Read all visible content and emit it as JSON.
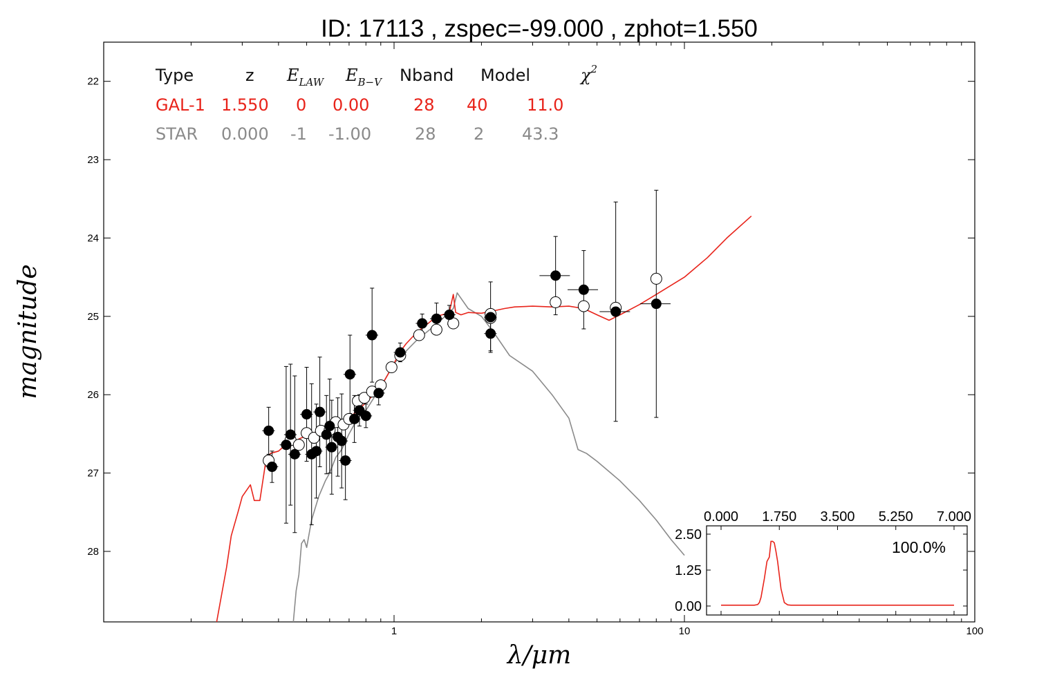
{
  "title": "ID:  17113 , zspec=-99.000 , zphot=1.550",
  "colors": {
    "gal": "#e8231a",
    "star": "#8a8a8a",
    "axis": "#000000"
  },
  "table": {
    "headers": {
      "type": "Type",
      "z": "z",
      "elaw": "E",
      "elaw_sub": "LAW",
      "ebv": "E",
      "ebv_sub": "B−V",
      "nband": "Nband",
      "model": "Model",
      "chi": "χ",
      "chi_sup": "2"
    },
    "rows": [
      {
        "name": "GAL-1",
        "z": "1.550",
        "elaw": "0",
        "ebv": "0.00",
        "nband": "28",
        "model": "40",
        "chi2": "11.0",
        "color": "#e8231a"
      },
      {
        "name": "STAR",
        "z": "0.000",
        "elaw": "-1",
        "ebv": "-1.00",
        "nband": "28",
        "model": "2",
        "chi2": "43.3",
        "color": "#8a8a8a"
      }
    ]
  },
  "chart_data": {
    "type": "scatter",
    "title": "ID:  17113 , zspec=-99.000 , zphot=1.550",
    "xlabel": "λ/μm",
    "ylabel": "magnitude",
    "xscale": "log",
    "xlim": [
      0.1,
      100
    ],
    "ylim": [
      28.9,
      21.5
    ],
    "xticks": [
      1,
      10,
      100
    ],
    "xtick_labels": [
      "1",
      "10",
      "100"
    ],
    "yticks": [
      22,
      23,
      24,
      25,
      26,
      27,
      28
    ],
    "ytick_labels": [
      "22",
      "23",
      "24",
      "25",
      "26",
      "27",
      "28"
    ],
    "observed": [
      {
        "x": 0.37,
        "y": 26.46,
        "err": 0.3
      },
      {
        "x": 0.38,
        "y": 26.92,
        "err": 0.2
      },
      {
        "x": 0.425,
        "y": 26.64,
        "err": 1.0
      },
      {
        "x": 0.44,
        "y": 26.51,
        "err": 0.9
      },
      {
        "x": 0.455,
        "y": 26.76,
        "err": 1.0
      },
      {
        "x": 0.5,
        "y": 26.25,
        "err": 0.6
      },
      {
        "x": 0.52,
        "y": 26.76,
        "err": 0.9
      },
      {
        "x": 0.54,
        "y": 26.72,
        "err": 0.6
      },
      {
        "x": 0.555,
        "y": 26.22,
        "err": 0.7
      },
      {
        "x": 0.585,
        "y": 26.51,
        "err": 0.5
      },
      {
        "x": 0.6,
        "y": 26.4,
        "err": 0.6
      },
      {
        "x": 0.61,
        "y": 26.67,
        "err": 0.6
      },
      {
        "x": 0.64,
        "y": 26.54,
        "err": 0.5
      },
      {
        "x": 0.66,
        "y": 26.59,
        "err": 0.6
      },
      {
        "x": 0.68,
        "y": 26.84,
        "err": 0.5
      },
      {
        "x": 0.705,
        "y": 25.74,
        "err": 0.5
      },
      {
        "x": 0.73,
        "y": 26.31,
        "err": 0.3
      },
      {
        "x": 0.76,
        "y": 26.2,
        "err": 0.2
      },
      {
        "x": 0.8,
        "y": 26.27,
        "err": 0.15
      },
      {
        "x": 0.84,
        "y": 25.24,
        "err": 0.6
      },
      {
        "x": 0.885,
        "y": 25.98,
        "err": 0.15
      },
      {
        "x": 1.05,
        "y": 25.46,
        "err": 0.12
      },
      {
        "x": 1.25,
        "y": 25.09,
        "err": 0.12
      },
      {
        "x": 1.4,
        "y": 25.03,
        "err": 0.2
      },
      {
        "x": 1.55,
        "y": 24.98,
        "err": 0.12
      },
      {
        "x": 2.15,
        "y": 25.01,
        "err": 0.45
      },
      {
        "x": 2.15,
        "y": 25.22,
        "err": 0.22
      },
      {
        "x": 3.6,
        "y": 24.48,
        "err": 0.5
      },
      {
        "x": 4.5,
        "y": 24.66,
        "err": 0.5
      },
      {
        "x": 5.8,
        "y": 24.94,
        "err": 1.4
      },
      {
        "x": 8.0,
        "y": 24.84,
        "err": 1.45
      }
    ],
    "model_points": [
      {
        "x": 0.37,
        "y": 26.84
      },
      {
        "x": 0.44,
        "y": 26.58
      },
      {
        "x": 0.47,
        "y": 26.64
      },
      {
        "x": 0.5,
        "y": 26.49
      },
      {
        "x": 0.53,
        "y": 26.55
      },
      {
        "x": 0.56,
        "y": 26.46
      },
      {
        "x": 0.6,
        "y": 26.45
      },
      {
        "x": 0.63,
        "y": 26.35
      },
      {
        "x": 0.67,
        "y": 26.38
      },
      {
        "x": 0.7,
        "y": 26.31
      },
      {
        "x": 0.75,
        "y": 26.08
      },
      {
        "x": 0.79,
        "y": 26.04
      },
      {
        "x": 0.84,
        "y": 25.96
      },
      {
        "x": 0.9,
        "y": 25.88
      },
      {
        "x": 0.98,
        "y": 25.65
      },
      {
        "x": 1.05,
        "y": 25.5
      },
      {
        "x": 1.22,
        "y": 25.24
      },
      {
        "x": 1.4,
        "y": 25.17
      },
      {
        "x": 1.6,
        "y": 25.09
      },
      {
        "x": 2.15,
        "y": 25.02
      },
      {
        "x": 2.15,
        "y": 24.97
      },
      {
        "x": 3.6,
        "y": 24.82
      },
      {
        "x": 4.5,
        "y": 24.87
      },
      {
        "x": 5.8,
        "y": 24.89
      },
      {
        "x": 8.0,
        "y": 24.52
      }
    ],
    "series": [
      {
        "name": "GAL-1",
        "color": "#e8231a",
        "x": [
          0.245,
          0.265,
          0.275,
          0.29,
          0.3,
          0.32,
          0.33,
          0.345,
          0.36,
          0.375,
          0.4,
          0.42,
          0.45,
          0.48,
          0.52,
          0.56,
          0.6,
          0.65,
          0.7,
          0.75,
          0.8,
          0.85,
          0.9,
          0.95,
          1.0,
          1.05,
          1.1,
          1.2,
          1.3,
          1.4,
          1.5,
          1.55,
          1.6,
          1.63,
          1.7,
          1.8,
          2.0,
          2.2,
          2.4,
          2.6,
          3.0,
          3.5,
          4.0,
          4.5,
          5.0,
          5.5,
          6.0,
          7.0,
          8.0,
          10.0,
          12.0,
          14.0,
          17.0
        ],
        "y": [
          28.9,
          28.2,
          27.8,
          27.5,
          27.3,
          27.15,
          27.35,
          27.35,
          26.9,
          26.75,
          26.72,
          26.65,
          26.6,
          26.55,
          26.5,
          26.45,
          26.4,
          26.35,
          26.3,
          26.2,
          26.1,
          26.0,
          25.9,
          25.75,
          25.6,
          25.45,
          25.35,
          25.2,
          25.1,
          25.0,
          24.97,
          24.95,
          24.72,
          24.95,
          24.98,
          24.95,
          24.96,
          24.93,
          24.9,
          24.88,
          24.87,
          24.88,
          24.87,
          24.9,
          24.98,
          25.05,
          24.98,
          24.85,
          24.72,
          24.5,
          24.25,
          24.0,
          23.72
        ]
      },
      {
        "name": "STAR",
        "color": "#8a8a8a",
        "x": [
          0.45,
          0.46,
          0.47,
          0.48,
          0.49,
          0.5,
          0.52,
          0.55,
          0.58,
          0.6,
          0.63,
          0.66,
          0.7,
          0.75,
          0.8,
          0.9,
          1.0,
          1.2,
          1.4,
          1.6,
          1.65,
          1.8,
          2.0,
          2.2,
          2.5,
          3.0,
          3.5,
          4.0,
          4.3,
          4.6,
          5.0,
          6.0,
          7.0,
          8.0,
          9.0,
          10.0
        ],
        "y": [
          28.9,
          28.5,
          28.3,
          27.9,
          27.85,
          27.95,
          27.6,
          27.3,
          27.1,
          27.0,
          26.8,
          26.7,
          26.5,
          26.3,
          26.2,
          25.9,
          25.6,
          25.3,
          25.1,
          24.9,
          24.7,
          24.9,
          25.0,
          25.2,
          25.5,
          25.7,
          26.0,
          26.3,
          26.7,
          26.75,
          26.85,
          27.1,
          27.35,
          27.6,
          27.85,
          28.05
        ]
      }
    ],
    "inset": {
      "type": "line",
      "xlim": [
        0.0,
        7.0
      ],
      "ylim": [
        0.0,
        2.5
      ],
      "xtick_labels": [
        "0.000",
        "1.750",
        "3.500",
        "5.250",
        "7.000"
      ],
      "ytick_labels": [
        "2.50",
        "1.25",
        "0.00"
      ],
      "annotation": "100.0%",
      "color": "#e8231a",
      "x": [
        0.0,
        1.0,
        1.1,
        1.15,
        1.2,
        1.3,
        1.38,
        1.45,
        1.5,
        1.55,
        1.6,
        1.65,
        1.7,
        1.8,
        1.9,
        2.0,
        2.1,
        3.0,
        7.0
      ],
      "y": [
        0.03,
        0.03,
        0.05,
        0.12,
        0.3,
        0.95,
        1.55,
        1.7,
        2.25,
        2.25,
        2.2,
        1.9,
        1.55,
        0.6,
        0.12,
        0.04,
        0.03,
        0.03,
        0.03
      ]
    }
  }
}
